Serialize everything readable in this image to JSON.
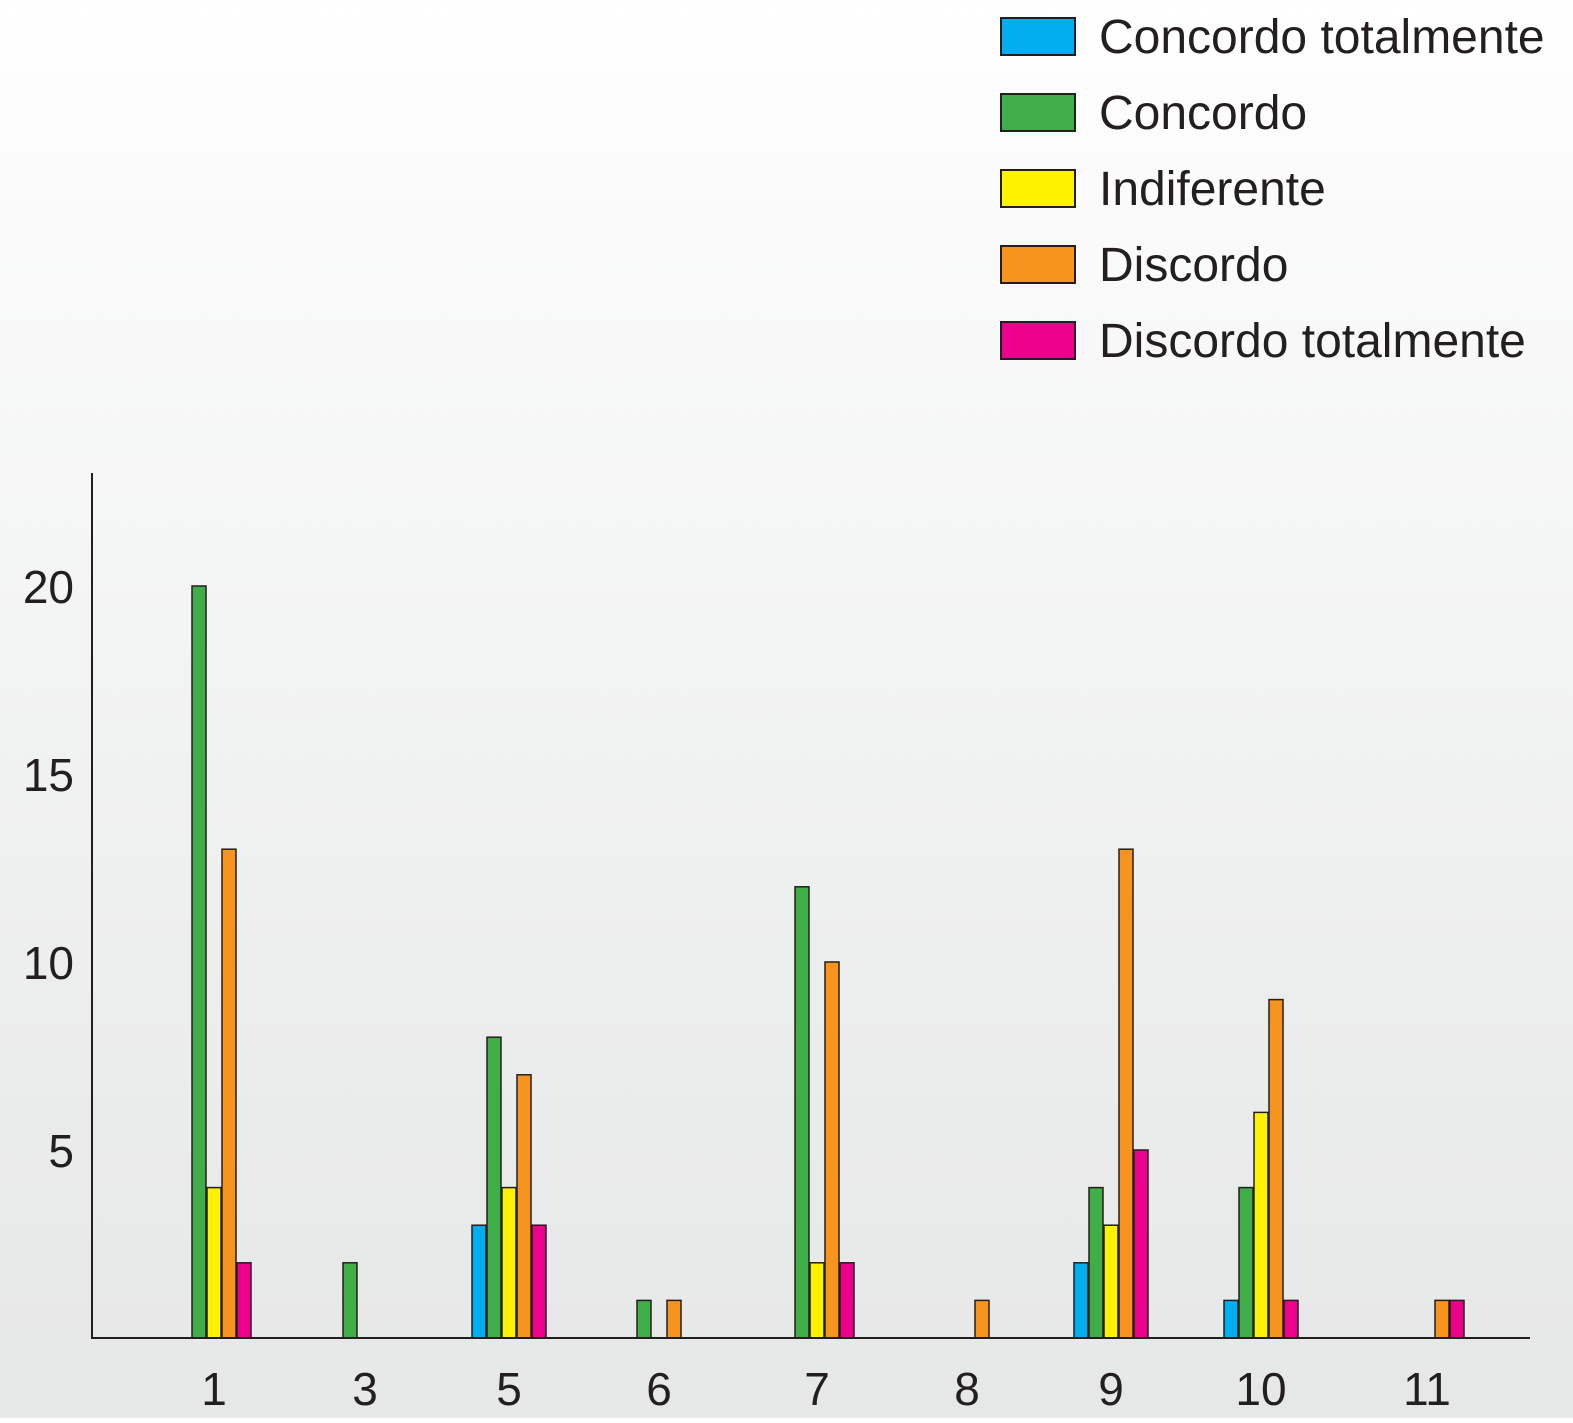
{
  "chart_data": {
    "type": "bar",
    "categories": [
      "1",
      "3",
      "5",
      "6",
      "7",
      "8",
      "9",
      "10",
      "11"
    ],
    "series": [
      {
        "name": "Concordo totalmente",
        "color": "#00aeef",
        "values": [
          0,
          0,
          3,
          0,
          0,
          0,
          2,
          1,
          0
        ]
      },
      {
        "name": "Concordo",
        "color": "#3fae49",
        "values": [
          20,
          2,
          8,
          1,
          12,
          0,
          4,
          4,
          0
        ]
      },
      {
        "name": "Indiferente",
        "color": "#fff200",
        "values": [
          4,
          0,
          4,
          0,
          2,
          0,
          3,
          6,
          0
        ]
      },
      {
        "name": "Discordo",
        "color": "#f7941d",
        "values": [
          13,
          0,
          7,
          1,
          10,
          1,
          13,
          9,
          1
        ]
      },
      {
        "name": "Discordo totalmente",
        "color": "#ec008c",
        "values": [
          2,
          0,
          3,
          0,
          2,
          0,
          5,
          1,
          1
        ]
      }
    ],
    "yticks": [
      "5",
      "10",
      "15",
      "20"
    ],
    "ylim": [
      0,
      23
    ],
    "legend_position": "top-right",
    "grid": false
  }
}
